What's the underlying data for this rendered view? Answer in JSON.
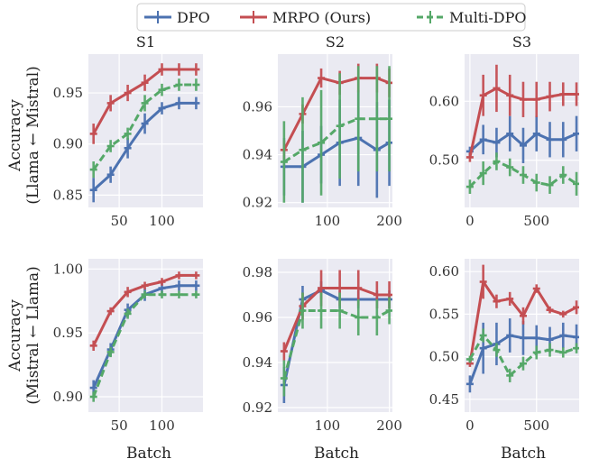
{
  "legend": {
    "position": "top-center",
    "entries": [
      {
        "name": "DPO",
        "color": "#4c72b0",
        "dash": "solid"
      },
      {
        "name": "MRPO (Ours)",
        "color": "#c44e52",
        "dash": "solid"
      },
      {
        "name": "Multi-DPO",
        "color": "#55a868",
        "dash": "dashed"
      }
    ]
  },
  "row_labels": [
    [
      "Accuracy",
      "(Llama ← Mistral)"
    ],
    [
      "Accuracy",
      "(Mistral ← Llama)"
    ]
  ],
  "xlabel": "Batch",
  "chart_data": [
    {
      "type": "line",
      "title": "S1",
      "xlim": [
        14,
        148
      ],
      "ylim": [
        0.838,
        0.988
      ],
      "xticks": [
        50,
        100
      ],
      "yticks": [
        0.85,
        0.9,
        0.95
      ],
      "xtick_labels": [
        "50",
        "100"
      ],
      "ytick_labels": [
        "0.85",
        "0.90",
        "0.95"
      ],
      "x": [
        20,
        40,
        60,
        80,
        100,
        120,
        140
      ],
      "series": [
        {
          "name": "DPO",
          "values": [
            0.855,
            0.87,
            0.896,
            0.92,
            0.935,
            0.94,
            0.94
          ],
          "err": [
            0.012,
            0.008,
            0.01,
            0.01,
            0.006,
            0.006,
            0.006
          ]
        },
        {
          "name": "MRPO (Ours)",
          "values": [
            0.91,
            0.94,
            0.95,
            0.96,
            0.973,
            0.973,
            0.973
          ],
          "err": [
            0.01,
            0.008,
            0.008,
            0.008,
            0.006,
            0.006,
            0.006
          ]
        },
        {
          "name": "Multi-DPO",
          "values": [
            0.875,
            0.898,
            0.91,
            0.94,
            0.953,
            0.958,
            0.958
          ],
          "err": [
            0.008,
            0.006,
            0.006,
            0.008,
            0.006,
            0.006,
            0.006
          ]
        }
      ]
    },
    {
      "type": "line",
      "title": "S2",
      "xlim": [
        20,
        205
      ],
      "ylim": [
        0.918,
        0.982
      ],
      "xticks": [
        100,
        200
      ],
      "yticks": [
        0.92,
        0.94,
        0.96
      ],
      "xtick_labels": [
        "100",
        "200"
      ],
      "ytick_labels": [
        "0.92",
        "0.94",
        "0.96"
      ],
      "x": [
        30,
        60,
        90,
        120,
        150,
        180,
        200
      ],
      "series": [
        {
          "name": "DPO",
          "values": [
            0.935,
            0.935,
            0.94,
            0.945,
            0.947,
            0.942,
            0.945
          ],
          "err": [
            0.012,
            0.015,
            0.012,
            0.018,
            0.02,
            0.02,
            0.018
          ]
        },
        {
          "name": "MRPO (Ours)",
          "values": [
            0.942,
            0.957,
            0.972,
            0.97,
            0.972,
            0.972,
            0.97
          ],
          "err": [
            0.004,
            0.004,
            0.004,
            0.005,
            0.006,
            0.006,
            0.006
          ]
        },
        {
          "name": "Multi-DPO",
          "values": [
            0.937,
            0.942,
            0.945,
            0.952,
            0.955,
            0.955,
            0.955
          ],
          "err": [
            0.017,
            0.022,
            0.022,
            0.022,
            0.022,
            0.022,
            0.022
          ]
        }
      ]
    },
    {
      "type": "line",
      "title": "S3",
      "xlim": [
        -40,
        820
      ],
      "ylim": [
        0.42,
        0.68
      ],
      "xticks": [
        0,
        500
      ],
      "yticks": [
        0.5,
        0.6
      ],
      "xtick_labels": [
        "0",
        "500"
      ],
      "ytick_labels": [
        "0.50",
        "0.60"
      ],
      "x": [
        0,
        100,
        200,
        300,
        400,
        500,
        600,
        700,
        800
      ],
      "series": [
        {
          "name": "DPO",
          "values": [
            0.515,
            0.535,
            0.53,
            0.545,
            0.525,
            0.545,
            0.535,
            0.535,
            0.545
          ],
          "err": [
            0.008,
            0.025,
            0.025,
            0.03,
            0.03,
            0.03,
            0.03,
            0.03,
            0.03
          ]
        },
        {
          "name": "MRPO (Ours)",
          "values": [
            0.505,
            0.61,
            0.622,
            0.61,
            0.603,
            0.603,
            0.608,
            0.612,
            0.612
          ],
          "err": [
            0.008,
            0.035,
            0.04,
            0.035,
            0.03,
            0.03,
            0.025,
            0.02,
            0.02
          ]
        },
        {
          "name": "Multi-DPO",
          "values": [
            0.455,
            0.478,
            0.498,
            0.488,
            0.475,
            0.462,
            0.458,
            0.475,
            0.46
          ],
          "err": [
            0.012,
            0.02,
            0.015,
            0.015,
            0.015,
            0.015,
            0.015,
            0.015,
            0.02
          ]
        }
      ]
    },
    {
      "type": "line",
      "title": "",
      "xlim": [
        14,
        148
      ],
      "ylim": [
        0.888,
        1.008
      ],
      "xticks": [
        50,
        100
      ],
      "yticks": [
        0.9,
        0.95,
        1.0
      ],
      "xtick_labels": [
        "50",
        "100"
      ],
      "ytick_labels": [
        "0.90",
        "0.95",
        "1.00"
      ],
      "x": [
        20,
        40,
        60,
        80,
        100,
        120,
        140
      ],
      "series": [
        {
          "name": "DPO",
          "values": [
            0.907,
            0.937,
            0.968,
            0.98,
            0.985,
            0.987,
            0.987
          ],
          "err": [
            0.006,
            0.005,
            0.005,
            0.005,
            0.004,
            0.004,
            0.004
          ]
        },
        {
          "name": "MRPO (Ours)",
          "values": [
            0.94,
            0.967,
            0.982,
            0.987,
            0.99,
            0.995,
            0.995
          ],
          "err": [
            0.004,
            0.003,
            0.004,
            0.003,
            0.003,
            0.003,
            0.003
          ]
        },
        {
          "name": "Multi-DPO",
          "values": [
            0.9,
            0.935,
            0.965,
            0.98,
            0.98,
            0.98,
            0.98
          ],
          "err": [
            0.004,
            0.004,
            0.004,
            0.003,
            0.003,
            0.003,
            0.003
          ]
        }
      ]
    },
    {
      "type": "line",
      "title": "",
      "xlim": [
        20,
        205
      ],
      "ylim": [
        0.918,
        0.986
      ],
      "xticks": [
        100,
        200
      ],
      "yticks": [
        0.92,
        0.94,
        0.96,
        0.98
      ],
      "xtick_labels": [
        "100",
        "200"
      ],
      "ytick_labels": [
        "0.92",
        "0.94",
        "0.96",
        "0.98"
      ],
      "x": [
        30,
        60,
        90,
        120,
        150,
        180,
        200
      ],
      "series": [
        {
          "name": "DPO",
          "values": [
            0.93,
            0.968,
            0.972,
            0.968,
            0.968,
            0.968,
            0.968
          ],
          "err": [
            0.008,
            0.006,
            0.004,
            0.004,
            0.004,
            0.004,
            0.004
          ]
        },
        {
          "name": "MRPO (Ours)",
          "values": [
            0.945,
            0.965,
            0.973,
            0.973,
            0.973,
            0.97,
            0.97
          ],
          "err": [
            0.004,
            0.006,
            0.008,
            0.008,
            0.008,
            0.006,
            0.006
          ]
        },
        {
          "name": "Multi-DPO",
          "values": [
            0.933,
            0.963,
            0.963,
            0.963,
            0.96,
            0.96,
            0.963
          ],
          "err": [
            0.008,
            0.008,
            0.008,
            0.008,
            0.008,
            0.008,
            0.006
          ]
        }
      ]
    },
    {
      "type": "line",
      "title": "",
      "xlim": [
        -40,
        820
      ],
      "ylim": [
        0.435,
        0.615
      ],
      "xticks": [
        0,
        500
      ],
      "yticks": [
        0.45,
        0.5,
        0.55,
        0.6
      ],
      "xtick_labels": [
        "0",
        "500"
      ],
      "ytick_labels": [
        "0.45",
        "0.50",
        "0.55",
        "0.60"
      ],
      "x": [
        0,
        100,
        200,
        300,
        400,
        500,
        600,
        700,
        800
      ],
      "series": [
        {
          "name": "DPO",
          "values": [
            0.468,
            0.51,
            0.515,
            0.525,
            0.522,
            0.522,
            0.52,
            0.525,
            0.523
          ],
          "err": [
            0.01,
            0.03,
            0.025,
            0.02,
            0.02,
            0.015,
            0.015,
            0.015,
            0.015
          ]
        },
        {
          "name": "MRPO (Ours)",
          "values": [
            0.492,
            0.588,
            0.565,
            0.568,
            0.548,
            0.58,
            0.555,
            0.55,
            0.558
          ],
          "err": [
            0.004,
            0.02,
            0.008,
            0.008,
            0.01,
            0.005,
            0.004,
            0.004,
            0.008
          ]
        },
        {
          "name": "Multi-DPO",
          "values": [
            0.497,
            0.525,
            0.508,
            0.478,
            0.492,
            0.505,
            0.508,
            0.505,
            0.51
          ],
          "err": [
            0.004,
            0.008,
            0.008,
            0.008,
            0.008,
            0.008,
            0.008,
            0.006,
            0.006
          ]
        }
      ]
    }
  ]
}
